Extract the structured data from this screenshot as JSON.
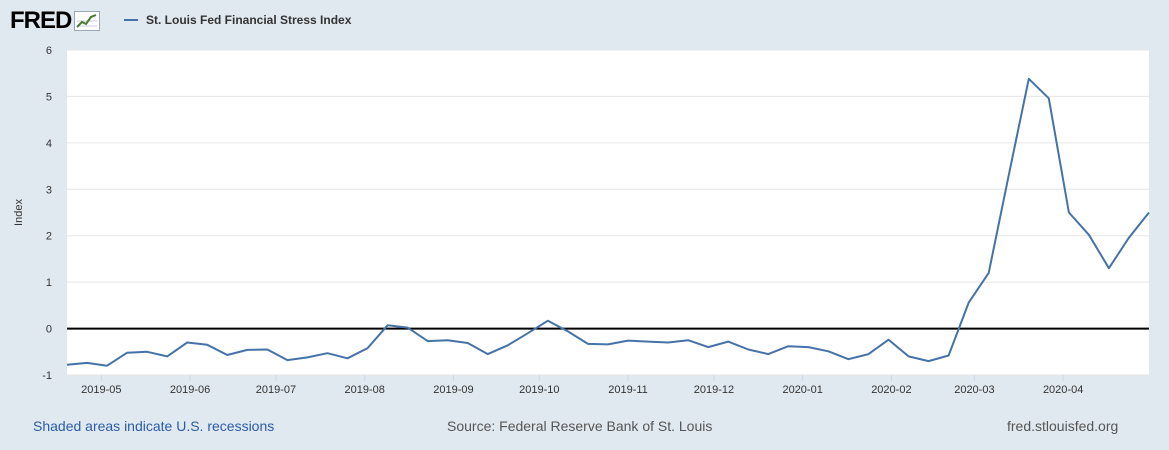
{
  "header": {
    "logo_text": "FRED",
    "logo_icon": "line-chart-icon",
    "legend_label": "St. Louis Fed Financial Stress Index"
  },
  "colors": {
    "series": "#4572a7",
    "background": "#e1e9f0",
    "plot_background": "#ffffff",
    "grid": "#e6e6e6",
    "zero_line": "#000000",
    "footer_link": "#2a5ca8"
  },
  "footer": {
    "recessions_note": "Shaded areas indicate U.S. recessions",
    "source": "Source: Federal Reserve Bank of St. Louis",
    "site": "fred.stlouisfed.org"
  },
  "chart_data": {
    "type": "line",
    "title": "",
    "ylabel": "Index",
    "xlabel": "",
    "ylim": [
      -1,
      6
    ],
    "yticks": [
      -1,
      0,
      1,
      2,
      3,
      4,
      5,
      6
    ],
    "xlim": [
      "2019-04-19",
      "2020-05-01"
    ],
    "xticks": [
      "2019-05",
      "2019-06",
      "2019-07",
      "2019-08",
      "2019-09",
      "2019-10",
      "2019-11",
      "2019-12",
      "2020-01",
      "2020-02",
      "2020-03",
      "2020-04"
    ],
    "grid": true,
    "zero_line": true,
    "legend": "top-left",
    "series": [
      {
        "name": "St. Louis Fed Financial Stress Index",
        "x": [
          "2019-04-19",
          "2019-04-26",
          "2019-05-03",
          "2019-05-10",
          "2019-05-17",
          "2019-05-24",
          "2019-05-31",
          "2019-06-07",
          "2019-06-14",
          "2019-06-21",
          "2019-06-28",
          "2019-07-05",
          "2019-07-12",
          "2019-07-19",
          "2019-07-26",
          "2019-08-02",
          "2019-08-09",
          "2019-08-16",
          "2019-08-23",
          "2019-08-30",
          "2019-09-06",
          "2019-09-13",
          "2019-09-20",
          "2019-09-27",
          "2019-10-04",
          "2019-10-11",
          "2019-10-18",
          "2019-10-25",
          "2019-11-01",
          "2019-11-08",
          "2019-11-15",
          "2019-11-22",
          "2019-11-29",
          "2019-12-06",
          "2019-12-13",
          "2019-12-20",
          "2019-12-27",
          "2020-01-03",
          "2020-01-10",
          "2020-01-17",
          "2020-01-24",
          "2020-01-31",
          "2020-02-07",
          "2020-02-14",
          "2020-02-21",
          "2020-02-28",
          "2020-03-06",
          "2020-03-13",
          "2020-03-20",
          "2020-03-27",
          "2020-04-03",
          "2020-04-10",
          "2020-04-17",
          "2020-04-24",
          "2020-05-01"
        ],
        "y": [
          -0.78,
          -0.74,
          -0.8,
          -0.52,
          -0.5,
          -0.6,
          -0.3,
          -0.35,
          -0.57,
          -0.46,
          -0.45,
          -0.68,
          -0.62,
          -0.53,
          -0.64,
          -0.42,
          0.07,
          0.02,
          -0.27,
          -0.25,
          -0.31,
          -0.55,
          -0.36,
          -0.1,
          0.17,
          -0.06,
          -0.33,
          -0.34,
          -0.26,
          -0.28,
          -0.3,
          -0.25,
          -0.4,
          -0.28,
          -0.45,
          -0.55,
          -0.38,
          -0.4,
          -0.49,
          -0.66,
          -0.55,
          -0.24,
          -0.6,
          -0.7,
          -0.58,
          0.56,
          1.2,
          3.3,
          5.38,
          4.96,
          2.5,
          2.02,
          1.3,
          1.96,
          2.5
        ]
      }
    ]
  }
}
